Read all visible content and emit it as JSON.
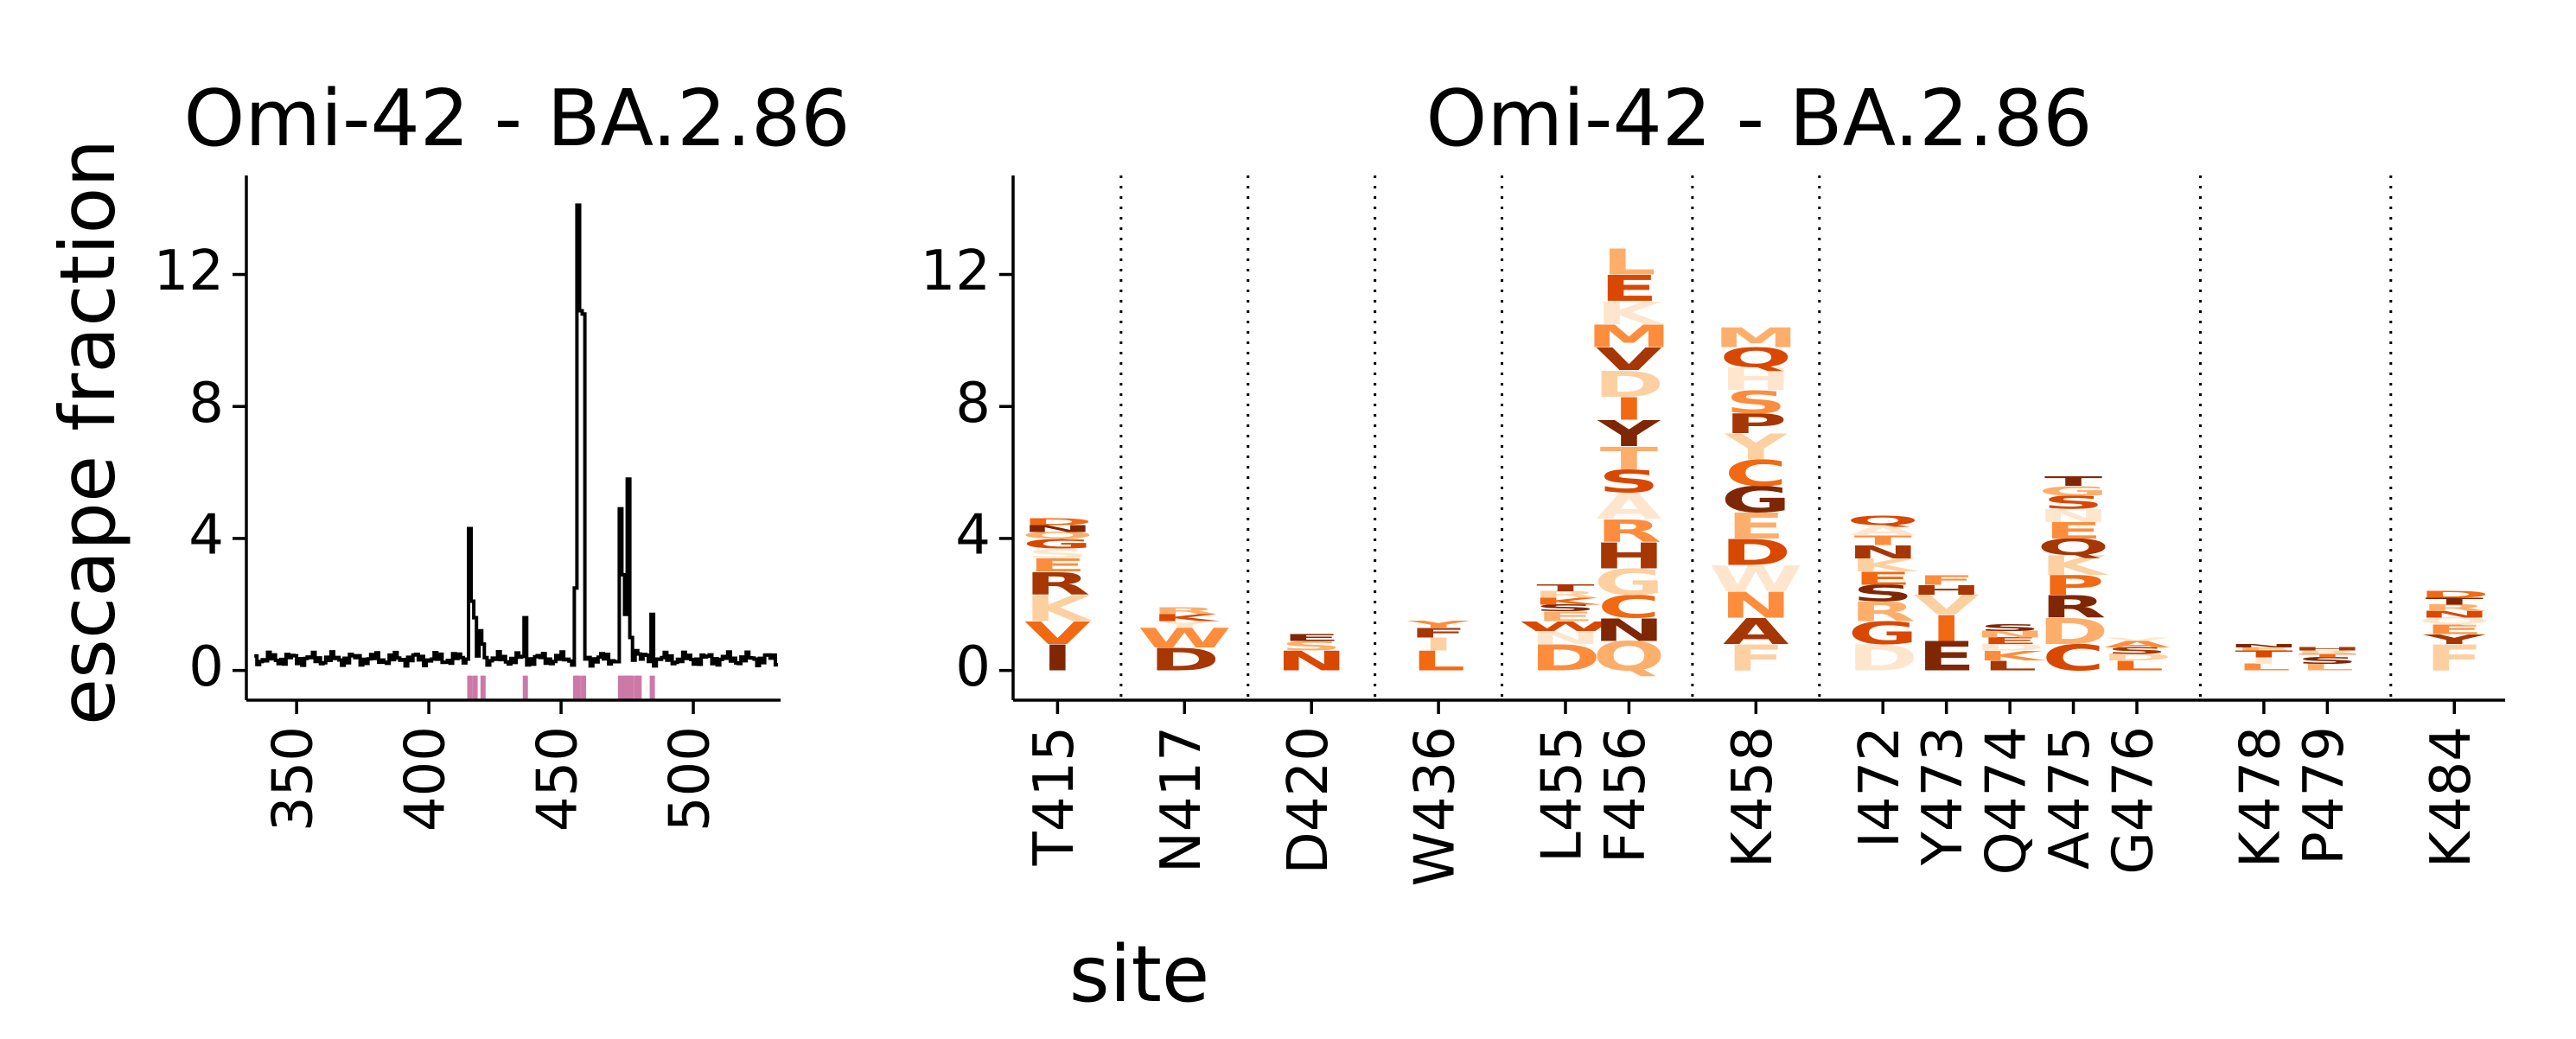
{
  "figure": {
    "ylabel": "escape fraction",
    "xlabel": "site"
  },
  "chart_data": [
    {
      "type": "line",
      "title": "Omi-42 - BA.2.86",
      "xlabel": "",
      "ylabel": "escape fraction",
      "xlim": [
        331,
        533
      ],
      "ylim": [
        -0.9,
        15
      ],
      "xticks": [
        350,
        400,
        450,
        500
      ],
      "yticks": [
        0,
        4,
        8,
        12
      ],
      "grid": false,
      "highlight_color": "#cc79a7",
      "line_color": "#000000",
      "highlighted_sites": [
        415,
        417,
        420,
        436,
        455,
        456,
        458,
        472,
        473,
        474,
        475,
        476,
        478,
        479,
        484
      ],
      "baseline_range": [
        334,
        531
      ],
      "baseline_value": 0.35,
      "peaks": [
        {
          "site": 415,
          "value": 4.3
        },
        {
          "site": 416,
          "value": 2.1
        },
        {
          "site": 417,
          "value": 1.6
        },
        {
          "site": 419,
          "value": 1.2
        },
        {
          "site": 420,
          "value": 0.8
        },
        {
          "site": 436,
          "value": 1.6
        },
        {
          "site": 455,
          "value": 2.5
        },
        {
          "site": 456,
          "value": 14.1
        },
        {
          "site": 457,
          "value": 10.9
        },
        {
          "site": 458,
          "value": 10.8
        },
        {
          "site": 472,
          "value": 4.9
        },
        {
          "site": 473,
          "value": 2.9
        },
        {
          "site": 474,
          "value": 1.7
        },
        {
          "site": 475,
          "value": 5.8
        },
        {
          "site": 476,
          "value": 1.0
        },
        {
          "site": 478,
          "value": 0.6
        },
        {
          "site": 479,
          "value": 0.5
        },
        {
          "site": 484,
          "value": 1.7
        }
      ]
    },
    {
      "type": "logo",
      "title": "Omi-42 - BA.2.86",
      "xlabel": "site",
      "ylabel": "",
      "ylim": [
        -0.9,
        15
      ],
      "yticks": [
        0,
        4,
        8,
        12
      ],
      "grid": false,
      "palette": [
        "#7f2704",
        "#a63603",
        "#d94801",
        "#f16913",
        "#fd8d3c",
        "#fdae6b",
        "#fdd0a2",
        "#fee6ce"
      ],
      "positions": [
        {
          "label": "T415",
          "separator_after": true,
          "letters": [
            [
              "I",
              0.8
            ],
            [
              "V",
              0.7
            ],
            [
              "K",
              0.8
            ],
            [
              "R",
              0.7
            ],
            [
              "E",
              0.4
            ],
            [
              "S",
              0.3
            ],
            [
              "G",
              0.3
            ],
            [
              "Q",
              0.2
            ],
            [
              "N",
              0.2
            ],
            [
              "D",
              0.2
            ]
          ]
        },
        {
          "label": "N417",
          "separator_after": true,
          "letters": [
            [
              "D",
              0.7
            ],
            [
              "W",
              0.6
            ],
            [
              "Y",
              0.2
            ],
            [
              "K",
              0.2
            ],
            [
              "R",
              0.2
            ]
          ]
        },
        {
          "label": "D420",
          "separator_after": true,
          "letters": [
            [
              "N",
              0.6
            ],
            [
              "S",
              0.3
            ],
            [
              "E",
              0.2
            ]
          ]
        },
        {
          "label": "W436",
          "separator_after": true,
          "letters": [
            [
              "L",
              0.6
            ],
            [
              "I",
              0.4
            ],
            [
              "F",
              0.3
            ],
            [
              "Y",
              0.2
            ]
          ]
        },
        {
          "label": "L455",
          "separator_after": false,
          "letters": [
            [
              "D",
              0.8
            ],
            [
              "N",
              0.4
            ],
            [
              "W",
              0.3
            ],
            [
              "E",
              0.3
            ],
            [
              "S",
              0.2
            ],
            [
              "K",
              0.2
            ],
            [
              "R",
              0.2
            ],
            [
              "T",
              0.2
            ]
          ]
        },
        {
          "label": "F456",
          "separator_after": true,
          "letters": [
            [
              "Q",
              0.9
            ],
            [
              "N",
              0.7
            ],
            [
              "C",
              0.7
            ],
            [
              "G",
              0.8
            ],
            [
              "H",
              0.8
            ],
            [
              "R",
              0.7
            ],
            [
              "A",
              0.8
            ],
            [
              "S",
              0.7
            ],
            [
              "T",
              0.7
            ],
            [
              "Y",
              0.8
            ],
            [
              "I",
              0.7
            ],
            [
              "D",
              0.8
            ],
            [
              "V",
              0.7
            ],
            [
              "M",
              0.7
            ],
            [
              "K",
              0.7
            ],
            [
              "E",
              0.8
            ],
            [
              "L",
              0.8
            ]
          ]
        },
        {
          "label": "K458",
          "separator_after": true,
          "letters": [
            [
              "F",
              0.8
            ],
            [
              "A",
              0.8
            ],
            [
              "N",
              0.8
            ],
            [
              "W",
              0.8
            ],
            [
              "D",
              0.8
            ],
            [
              "E",
              0.8
            ],
            [
              "G",
              0.8
            ],
            [
              "C",
              0.8
            ],
            [
              "Y",
              0.8
            ],
            [
              "P",
              0.6
            ],
            [
              "S",
              0.7
            ],
            [
              "H",
              0.7
            ],
            [
              "Q",
              0.6
            ],
            [
              "M",
              0.6
            ]
          ]
        },
        {
          "label": "I472",
          "separator_after": false,
          "letters": [
            [
              "D",
              0.8
            ],
            [
              "G",
              0.7
            ],
            [
              "R",
              0.6
            ],
            [
              "S",
              0.5
            ],
            [
              "E",
              0.4
            ],
            [
              "K",
              0.4
            ],
            [
              "N",
              0.4
            ],
            [
              "T",
              0.3
            ],
            [
              "A",
              0.3
            ],
            [
              "Q",
              0.3
            ]
          ]
        },
        {
          "label": "Y473",
          "separator_after": false,
          "letters": [
            [
              "E",
              0.9
            ],
            [
              "I",
              0.8
            ],
            [
              "V",
              0.6
            ],
            [
              "H",
              0.3
            ],
            [
              "F",
              0.3
            ]
          ]
        },
        {
          "label": "Q474",
          "separator_after": false,
          "letters": [
            [
              "L",
              0.3
            ],
            [
              "K",
              0.3
            ],
            [
              "D",
              0.2
            ],
            [
              "E",
              0.2
            ],
            [
              "N",
              0.2
            ],
            [
              "S",
              0.2
            ]
          ]
        },
        {
          "label": "A475",
          "separator_after": false,
          "letters": [
            [
              "C",
              0.8
            ],
            [
              "D",
              0.8
            ],
            [
              "R",
              0.7
            ],
            [
              "P",
              0.6
            ],
            [
              "K",
              0.6
            ],
            [
              "Q",
              0.5
            ],
            [
              "E",
              0.5
            ],
            [
              "N",
              0.4
            ],
            [
              "S",
              0.4
            ],
            [
              "G",
              0.3
            ],
            [
              "T",
              0.3
            ]
          ]
        },
        {
          "label": "G476",
          "separator_after": true,
          "letters": [
            [
              "L",
              0.3
            ],
            [
              "D",
              0.2
            ],
            [
              "S",
              0.2
            ],
            [
              "A",
              0.2
            ],
            [
              "V",
              0.1
            ]
          ]
        },
        {
          "label": "K478",
          "separator_after": false,
          "letters": [
            [
              "L",
              0.2
            ],
            [
              "I",
              0.2
            ],
            [
              "T",
              0.2
            ],
            [
              "E",
              0.1
            ],
            [
              "N",
              0.1
            ]
          ]
        },
        {
          "label": "P479",
          "separator_after": true,
          "letters": [
            [
              "L",
              0.2
            ],
            [
              "S",
              0.2
            ],
            [
              "T",
              0.1
            ],
            [
              "R",
              0.1
            ],
            [
              "H",
              0.1
            ]
          ]
        },
        {
          "label": "K484",
          "separator_after": false,
          "letters": [
            [
              "F",
              0.8
            ],
            [
              "Y",
              0.3
            ],
            [
              "E",
              0.3
            ],
            [
              "Q",
              0.2
            ],
            [
              "N",
              0.2
            ],
            [
              "R",
              0.2
            ],
            [
              "T",
              0.2
            ],
            [
              "D",
              0.2
            ]
          ]
        }
      ]
    }
  ]
}
